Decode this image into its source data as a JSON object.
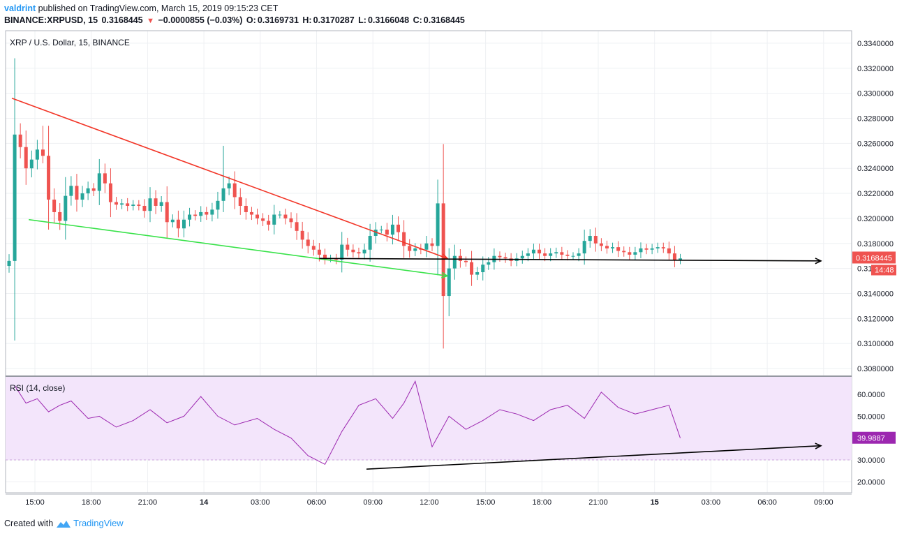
{
  "header": {
    "user": "valdrint",
    "published_text": "published on TradingView.com, March 15, 2019 09:15:23 CET",
    "symbol": "BINANCE:XRPUSD, 15",
    "last": "0.3168445",
    "change_icon": "down-triangle-icon",
    "change_symbol": "▼",
    "change": "−0.0000855 (−0.03%)",
    "o_label": "O:",
    "o": "0.3169731",
    "h_label": "H:",
    "h": "0.3170287",
    "l_label": "L:",
    "l": "0.3166048",
    "c_label": "C:",
    "c": "0.3168445"
  },
  "footer": {
    "created_with": "Created with",
    "brand": "TradingView",
    "brand_icon": "tradingview-logo-icon"
  },
  "chart_data": [
    {
      "type": "candlestick",
      "title": "XRP / U.S. Dollar, 15, BINANCE",
      "ylim": [
        0.3075,
        0.335
      ],
      "y_ticks": [
        "0.3340000",
        "0.3320000",
        "0.3300000",
        "0.3280000",
        "0.3260000",
        "0.3240000",
        "0.3220000",
        "0.3200000",
        "0.3180000",
        "0.3160000",
        "0.3140000",
        "0.3120000",
        "0.3100000",
        "0.3080000"
      ],
      "x_ticks": [
        "15:00",
        "18:00",
        "21:00",
        "14",
        "03:00",
        "06:00",
        "09:00",
        "12:00",
        "15:00",
        "18:00",
        "21:00",
        "15",
        "03:00",
        "06:00",
        "09:00"
      ],
      "last_price_label": "0.3168445",
      "countdown_label": "14:48",
      "up_color": "#26a69a",
      "down_color": "#ef5350",
      "close_points": [
        [
          0,
          0.3166
        ],
        [
          1,
          0.3267
        ],
        [
          2,
          0.3257
        ],
        [
          3,
          0.324
        ],
        [
          4,
          0.3247
        ],
        [
          5,
          0.3255
        ],
        [
          6,
          0.325
        ],
        [
          7,
          0.3215
        ],
        [
          8,
          0.3205
        ],
        [
          9,
          0.3198
        ],
        [
          10,
          0.3218
        ],
        [
          11,
          0.3226
        ],
        [
          12,
          0.3215
        ],
        [
          13,
          0.322
        ],
        [
          14,
          0.3224
        ],
        [
          15,
          0.3222
        ],
        [
          16,
          0.3236
        ],
        [
          17,
          0.3228
        ],
        [
          18,
          0.3213
        ],
        [
          19,
          0.3211
        ],
        [
          20,
          0.3212
        ],
        [
          21,
          0.321
        ],
        [
          22,
          0.3211
        ],
        [
          23,
          0.321
        ],
        [
          24,
          0.3206
        ],
        [
          25,
          0.3216
        ],
        [
          26,
          0.321
        ],
        [
          27,
          0.3213
        ],
        [
          28,
          0.3197
        ],
        [
          29,
          0.3199
        ],
        [
          30,
          0.3192
        ],
        [
          31,
          0.3199
        ],
        [
          32,
          0.3203
        ],
        [
          33,
          0.3202
        ],
        [
          34,
          0.3205
        ],
        [
          35,
          0.3203
        ],
        [
          36,
          0.3207
        ],
        [
          37,
          0.3214
        ],
        [
          38,
          0.3224
        ],
        [
          39,
          0.3228
        ],
        [
          40,
          0.3217
        ],
        [
          41,
          0.321
        ],
        [
          42,
          0.3205
        ],
        [
          43,
          0.3203
        ],
        [
          44,
          0.32
        ],
        [
          45,
          0.3198
        ],
        [
          46,
          0.3195
        ],
        [
          47,
          0.3203
        ],
        [
          48,
          0.3203
        ],
        [
          49,
          0.32
        ],
        [
          50,
          0.3197
        ],
        [
          51,
          0.319
        ],
        [
          52,
          0.3183
        ],
        [
          53,
          0.3178
        ],
        [
          54,
          0.3175
        ],
        [
          55,
          0.3171
        ],
        [
          56,
          0.3168
        ],
        [
          57,
          0.3168
        ],
        [
          58,
          0.3167
        ],
        [
          59,
          0.3179
        ],
        [
          60,
          0.3175
        ],
        [
          61,
          0.3173
        ],
        [
          62,
          0.3172
        ],
        [
          63,
          0.3175
        ],
        [
          64,
          0.3186
        ],
        [
          65,
          0.3191
        ],
        [
          66,
          0.3191
        ],
        [
          67,
          0.3187
        ],
        [
          68,
          0.3195
        ],
        [
          69,
          0.3189
        ],
        [
          70,
          0.3178
        ],
        [
          71,
          0.3174
        ],
        [
          72,
          0.3176
        ],
        [
          73,
          0.3175
        ],
        [
          74,
          0.318
        ],
        [
          75,
          0.3178
        ],
        [
          76,
          0.3212
        ],
        [
          77,
          0.3138
        ],
        [
          78,
          0.316
        ],
        [
          79,
          0.317
        ],
        [
          80,
          0.3166
        ],
        [
          81,
          0.3165
        ],
        [
          82,
          0.3155
        ],
        [
          83,
          0.3157
        ],
        [
          84,
          0.3163
        ],
        [
          85,
          0.3165
        ],
        [
          86,
          0.317
        ],
        [
          87,
          0.3169
        ],
        [
          88,
          0.3168
        ],
        [
          89,
          0.3166
        ],
        [
          90,
          0.3168
        ],
        [
          91,
          0.317
        ],
        [
          92,
          0.3172
        ],
        [
          93,
          0.3175
        ],
        [
          94,
          0.3172
        ],
        [
          95,
          0.317
        ],
        [
          96,
          0.3172
        ],
        [
          97,
          0.3173
        ],
        [
          98,
          0.3171
        ],
        [
          99,
          0.317
        ],
        [
          100,
          0.317
        ],
        [
          101,
          0.3172
        ],
        [
          102,
          0.3182
        ],
        [
          103,
          0.3186
        ],
        [
          104,
          0.318
        ],
        [
          105,
          0.3178
        ],
        [
          106,
          0.3176
        ],
        [
          107,
          0.3177
        ],
        [
          108,
          0.3174
        ],
        [
          109,
          0.3173
        ],
        [
          110,
          0.3171
        ],
        [
          111,
          0.3173
        ],
        [
          112,
          0.3176
        ],
        [
          113,
          0.3175
        ],
        [
          114,
          0.3176
        ],
        [
          115,
          0.3177
        ],
        [
          116,
          0.3176
        ],
        [
          117,
          0.3172
        ],
        [
          118,
          0.3167
        ],
        [
          119,
          0.3168
        ]
      ],
      "annotation_lines": [
        {
          "name": "red-resistance-line",
          "color": "#f23527",
          "from": [
            0.5,
            0.3296
          ],
          "to": [
            77.7,
            0.3168
          ]
        },
        {
          "name": "green-support-line",
          "color": "#39e24a",
          "from": [
            3.5,
            0.3199
          ],
          "to": [
            77.7,
            0.3154
          ]
        },
        {
          "name": "black-horizontal-line",
          "color": "#000000",
          "from": [
            55,
            0.3168
          ],
          "to": [
            146,
            0.3166
          ]
        }
      ]
    },
    {
      "type": "line",
      "title": "RSI (14, close)",
      "ylim": [
        15,
        68
      ],
      "y_ticks": [
        "60.0000",
        "50.0000",
        "40.0000",
        "30.0000",
        "20.0000"
      ],
      "band": [
        30,
        70
      ],
      "line_color": "#9c27b0",
      "last_value_label": "39.9887",
      "x": [
        1,
        3,
        5,
        7,
        9,
        11,
        14,
        16,
        19,
        22,
        25,
        28,
        31,
        34,
        37,
        40,
        44,
        47,
        50,
        53,
        56,
        59,
        62,
        65,
        68,
        70,
        72,
        75,
        78,
        81,
        84,
        87,
        90,
        93,
        96,
        99,
        102,
        105,
        108,
        111,
        114,
        117,
        119
      ],
      "values": [
        64,
        56,
        58,
        52,
        55,
        57,
        49,
        50,
        45,
        48,
        53,
        47,
        50,
        59,
        50,
        46,
        49,
        44,
        40,
        32,
        28,
        43,
        55,
        58,
        49,
        56,
        66,
        36,
        50,
        44,
        48,
        53,
        51,
        48,
        53,
        55,
        49,
        61,
        54,
        51,
        53,
        55,
        40
      ],
      "trend_line": {
        "name": "rsi-divergence-line",
        "color": "#000000",
        "from": [
          64.5,
          25.8
        ],
        "to": [
          146,
          36.5
        ]
      }
    }
  ]
}
